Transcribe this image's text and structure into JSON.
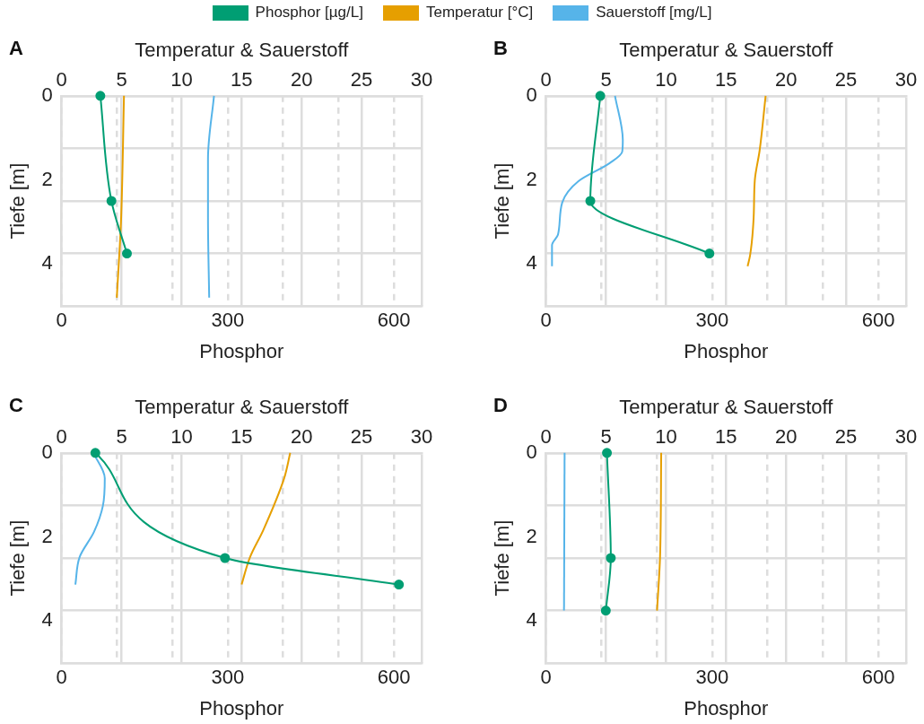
{
  "chart_data": [
    {
      "type": "line",
      "title": "A",
      "xlabel": "Phosphor",
      "x2label": "Temperatur & Sauerstoff",
      "ylabel": "Tiefe [m]",
      "legend": "top",
      "grid": true,
      "xlim": [
        0,
        650
      ],
      "xticks": [
        0,
        {
          "value": 100,
          "label": null
        },
        {
          "value": 200,
          "label": null
        },
        300,
        {
          "value": 400,
          "label": null
        },
        {
          "value": 500,
          "label": null
        },
        600
      ],
      "x2lim": [
        0,
        30
      ],
      "x2ticks": [
        0,
        5,
        10,
        15,
        20,
        25,
        30
      ],
      "ylim": [
        5,
        0
      ],
      "yticks": [
        0,
        {
          "value": 1.25,
          "label": null
        },
        2,
        {
          "value": 2.5,
          "label": null
        },
        {
          "value": 3.75,
          "label": null
        },
        4,
        {
          "value": 5,
          "label": null
        }
      ],
      "series": [
        {
          "name": "Phosphor [µg/L]",
          "color": "#009e73",
          "marker": "circle",
          "x": [
            70,
            90,
            118
          ],
          "values": [
            0,
            2.5,
            3.75
          ]
        },
        {
          "name": "Temperatur [°C]",
          "color": "#e69f00",
          "marker": "none",
          "axis": "x2",
          "x": [
            5.2,
            4.95,
            4.6
          ],
          "values": [
            0,
            3,
            4.8
          ]
        },
        {
          "name": "Sauerstoff [mg/L]",
          "color": "#56b4e9",
          "marker": "none",
          "axis": "x2",
          "x": [
            12.7,
            12.2,
            12.2,
            12.3
          ],
          "values": [
            0,
            1.5,
            2.9,
            4.8
          ]
        }
      ]
    },
    {
      "type": "line",
      "title": "B",
      "xlabel": "Phosphor",
      "x2label": "Temperatur & Sauerstoff",
      "ylabel": "Tiefe [m]",
      "grid": true,
      "xlim": [
        0,
        650
      ],
      "xticks": [
        0,
        {
          "value": 100,
          "label": null
        },
        {
          "value": 200,
          "label": null
        },
        300,
        {
          "value": 400,
          "label": null
        },
        {
          "value": 500,
          "label": null
        },
        600
      ],
      "x2lim": [
        0,
        30
      ],
      "x2ticks": [
        0,
        5,
        10,
        15,
        20,
        25,
        30
      ],
      "ylim": [
        5,
        0
      ],
      "yticks": [
        0,
        {
          "value": 1.25,
          "label": null
        },
        2,
        {
          "value": 2.5,
          "label": null
        },
        {
          "value": 3.75,
          "label": null
        },
        4,
        {
          "value": 5,
          "label": null
        }
      ],
      "series": [
        {
          "color": "#009e73",
          "marker": "circle",
          "x": [
            98,
            80,
            295
          ],
          "values": [
            0,
            2.5,
            3.75
          ]
        },
        {
          "color": "#e69f00",
          "marker": "none",
          "axis": "x2",
          "x": [
            18.3,
            17.8,
            17.4,
            17.3,
            17.0,
            16.8
          ],
          "values": [
            0,
            1.3,
            2.0,
            2.9,
            3.8,
            4.05
          ]
        },
        {
          "color": "#56b4e9",
          "marker": "none",
          "axis": "x2",
          "x": [
            5.75,
            6.4,
            6.35,
            5.3,
            2.7,
            1.35,
            1.0,
            0.5,
            0.5
          ],
          "values": [
            0,
            1.05,
            1.33,
            1.6,
            2.03,
            2.54,
            3.3,
            3.55,
            4.05
          ]
        }
      ]
    },
    {
      "type": "line",
      "title": "C",
      "xlabel": "Phosphor",
      "x2label": "Temperatur & Sauerstoff",
      "ylabel": "Tiefe [m]",
      "grid": true,
      "xlim": [
        0,
        650
      ],
      "xticks": [
        0,
        {
          "value": 100,
          "label": null
        },
        {
          "value": 200,
          "label": null
        },
        300,
        {
          "value": 400,
          "label": null
        },
        {
          "value": 500,
          "label": null
        },
        600
      ],
      "x2lim": [
        0,
        30
      ],
      "x2ticks": [
        0,
        5,
        10,
        15,
        20,
        25,
        30
      ],
      "ylim": [
        5,
        0
      ],
      "yticks": [
        0,
        {
          "value": 1.25,
          "label": null
        },
        2,
        {
          "value": 2.5,
          "label": null
        },
        {
          "value": 3.75,
          "label": null
        },
        4,
        {
          "value": 5,
          "label": null
        }
      ],
      "series": [
        {
          "color": "#009e73",
          "marker": "circle",
          "x": [
            61,
            295,
            609
          ],
          "values": [
            0,
            2.5,
            3.13
          ]
        },
        {
          "color": "#e69f00",
          "marker": "none",
          "axis": "x2",
          "x": [
            19.05,
            18.55,
            16.8,
            15.7,
            15.0
          ],
          "values": [
            0,
            0.6,
            1.84,
            2.48,
            3.13
          ]
        },
        {
          "color": "#56b4e9",
          "marker": "none",
          "axis": "x2",
          "x": [
            2.65,
            3.6,
            3.45,
            2.7,
            1.5,
            1.15
          ],
          "values": [
            0,
            0.6,
            1.25,
            1.88,
            2.48,
            3.13
          ]
        }
      ]
    },
    {
      "type": "line",
      "title": "D",
      "xlabel": "Phosphor",
      "x2label": "Temperatur & Sauerstoff",
      "ylabel": "Tiefe [m]",
      "grid": true,
      "xlim": [
        0,
        650
      ],
      "xticks": [
        0,
        {
          "value": 100,
          "label": null
        },
        {
          "value": 200,
          "label": null
        },
        300,
        {
          "value": 400,
          "label": null
        },
        {
          "value": 500,
          "label": null
        },
        600
      ],
      "x2lim": [
        0,
        30
      ],
      "x2ticks": [
        0,
        5,
        10,
        15,
        20,
        25,
        30
      ],
      "ylim": [
        5,
        0
      ],
      "yticks": [
        0,
        {
          "value": 1.25,
          "label": null
        },
        2,
        {
          "value": 2.5,
          "label": null
        },
        {
          "value": 3.75,
          "label": null
        },
        4,
        {
          "value": 5,
          "label": null
        }
      ],
      "series": [
        {
          "color": "#009e73",
          "marker": "circle",
          "x": [
            110,
            117,
            108
          ],
          "values": [
            0,
            2.5,
            3.75
          ]
        },
        {
          "color": "#e69f00",
          "marker": "none",
          "axis": "x2",
          "x": [
            9.6,
            9.5,
            9.25
          ],
          "values": [
            0,
            2.5,
            3.75
          ]
        },
        {
          "color": "#56b4e9",
          "marker": "none",
          "axis": "x2",
          "x": [
            1.55,
            1.5
          ],
          "values": [
            0,
            3.75
          ]
        }
      ]
    }
  ]
}
